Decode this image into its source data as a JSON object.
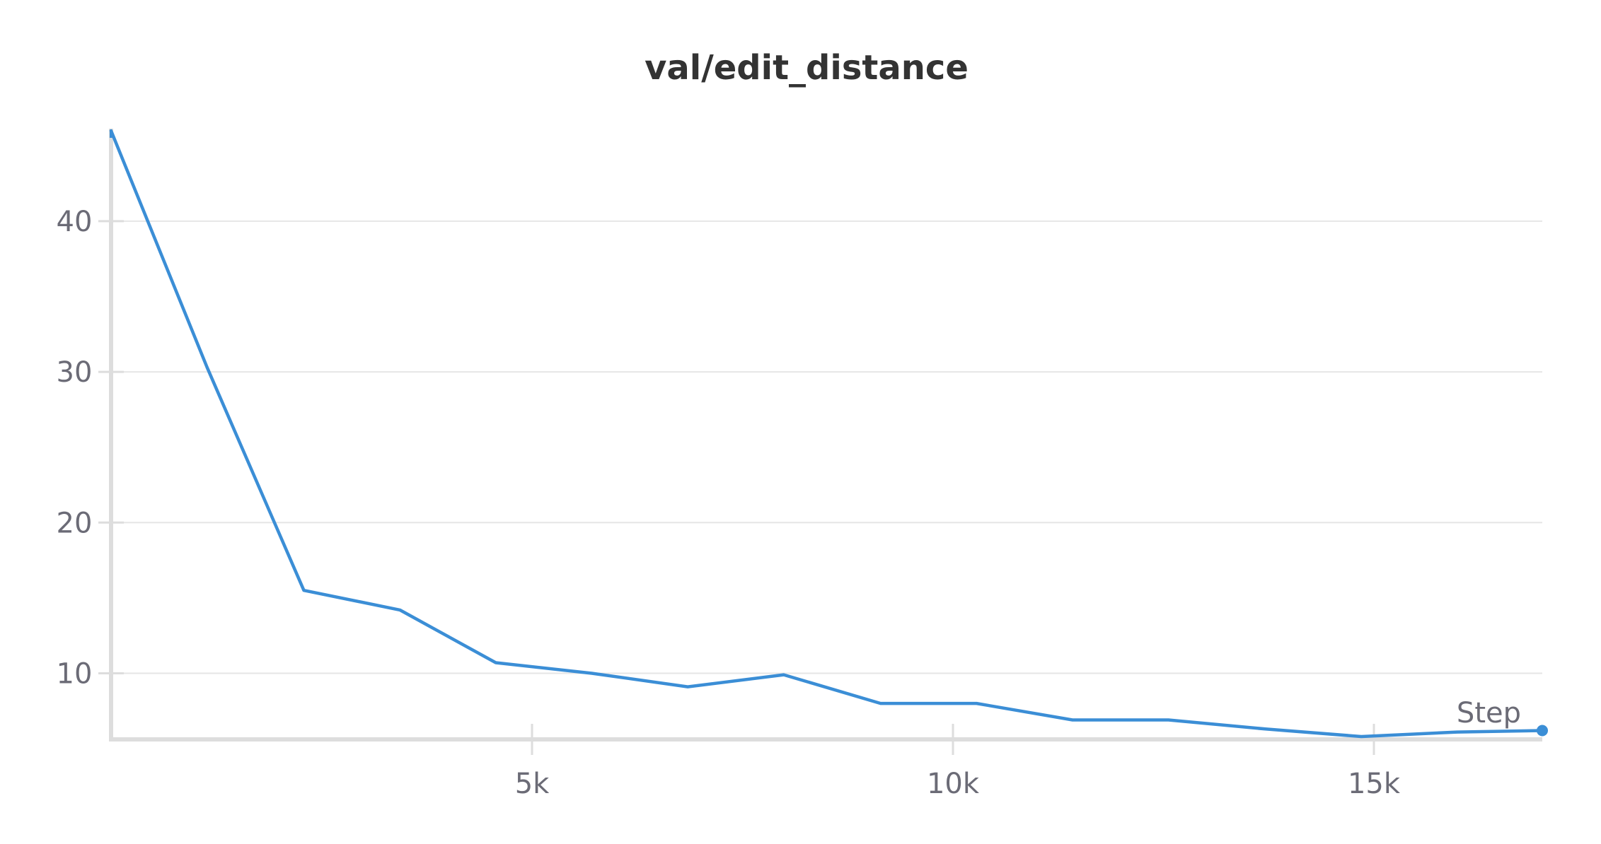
{
  "chart_data": {
    "type": "line",
    "title": "val/edit_distance",
    "xlabel": "Step",
    "ylabel": "",
    "grid": true,
    "legend": "none",
    "xlim": [
      0,
      17000
    ],
    "ylim": [
      5.8,
      46
    ],
    "x_ticks": [
      5000,
      10000,
      15000
    ],
    "x_tick_labels": [
      "5k",
      "10k",
      "15k"
    ],
    "y_ticks": [
      10,
      20,
      30,
      40
    ],
    "y_tick_labels": [
      "10",
      "20",
      "30",
      "40"
    ],
    "series": [
      {
        "color": "#3b8ed6",
        "x": [
          0,
          1140,
          2290,
          3430,
          4570,
          5710,
          6850,
          7990,
          9140,
          10280,
          11420,
          12560,
          13710,
          14850,
          15990,
          17000
        ],
        "y": [
          46,
          30.3,
          15.5,
          14.2,
          10.7,
          10.0,
          9.1,
          9.9,
          8.0,
          8.0,
          6.9,
          6.9,
          6.3,
          5.8,
          6.1,
          6.2
        ]
      }
    ]
  }
}
